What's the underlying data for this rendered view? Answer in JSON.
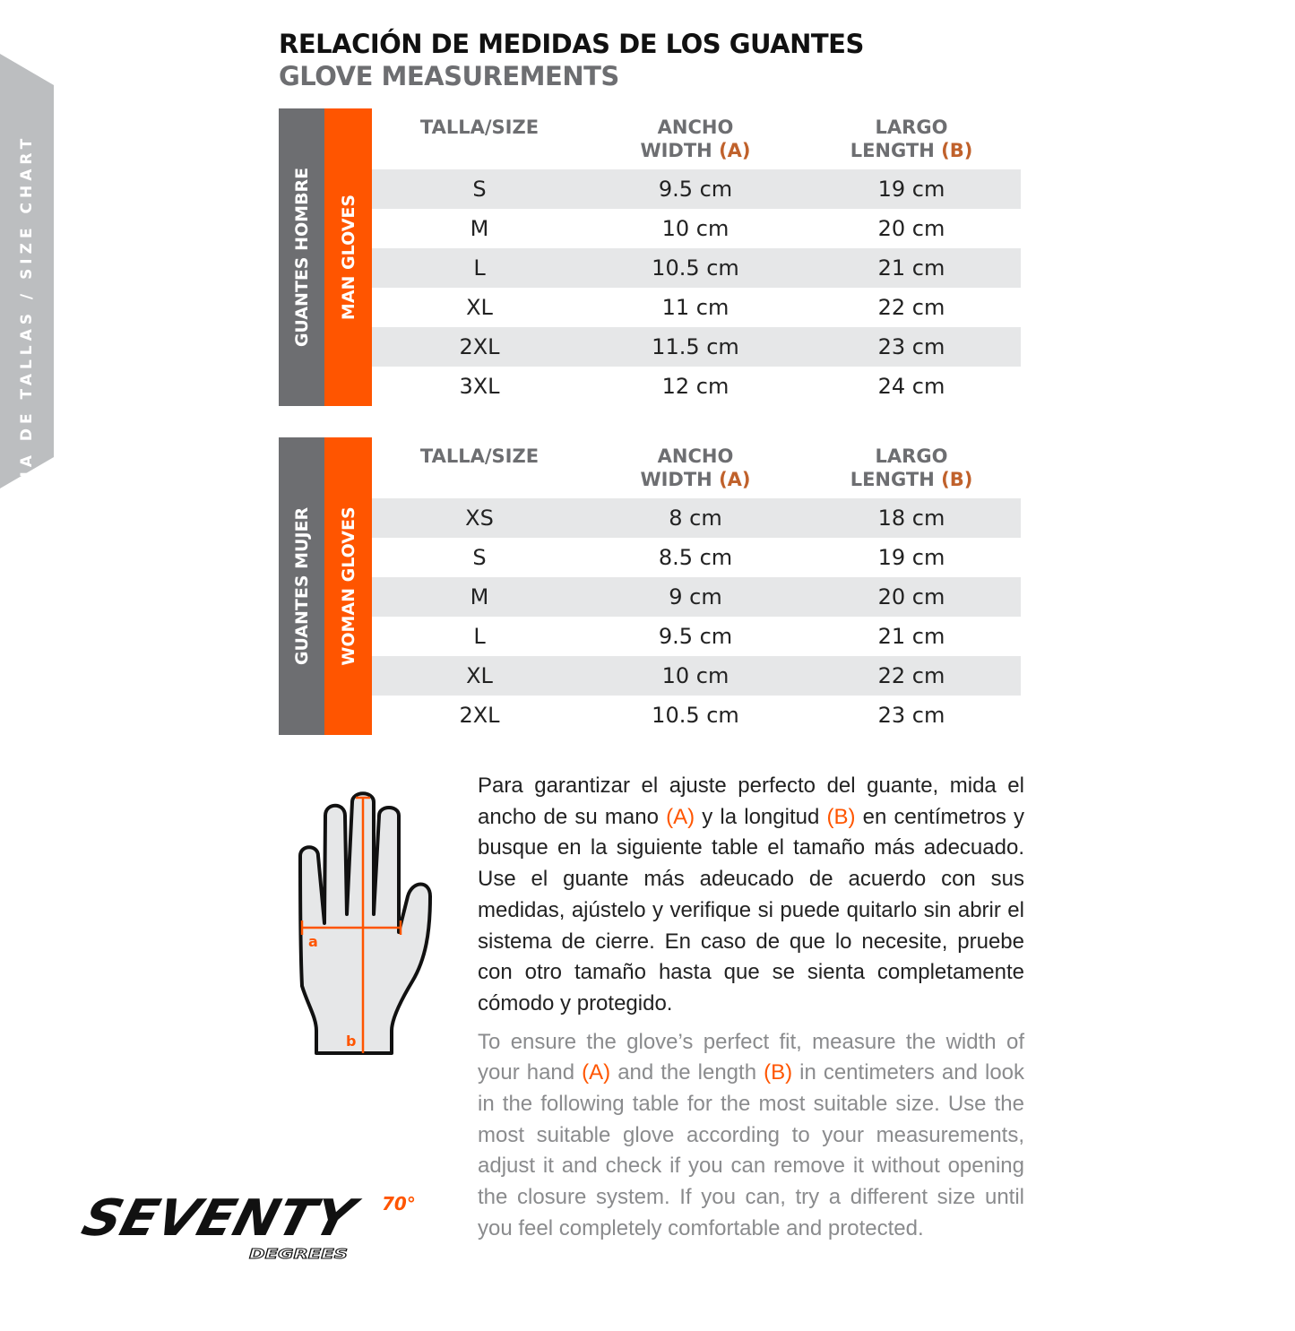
{
  "side_tab": {
    "label": "GUIA DE TALLAS / SIZE CHART",
    "color": "#bcbec0"
  },
  "title": {
    "es": "RELACIÓN DE MEDIDAS DE LOS GUANTES",
    "en": "GLOVE MEASUREMENTS"
  },
  "colors": {
    "accent": "#ff5500",
    "band_gray": "#6d6e71",
    "row_alt": "#e6e7e8"
  },
  "headers": {
    "size": "TALLA/SIZE",
    "width_es": "ANCHO",
    "width_en": "WIDTH",
    "width_mark": "(A)",
    "length_es": "LARGO",
    "length_en": "LENGTH",
    "length_mark": "(B)"
  },
  "men": {
    "label_es": "GUANTES HOMBRE",
    "label_en": "MAN GLOVES",
    "rows": [
      {
        "size": "S",
        "width": "9.5 cm",
        "length": "19 cm"
      },
      {
        "size": "M",
        "width": "10 cm",
        "length": "20 cm"
      },
      {
        "size": "L",
        "width": "10.5 cm",
        "length": "21 cm"
      },
      {
        "size": "XL",
        "width": "11 cm",
        "length": "22 cm"
      },
      {
        "size": "2XL",
        "width": "11.5 cm",
        "length": "23 cm"
      },
      {
        "size": "3XL",
        "width": "12 cm",
        "length": "24 cm"
      }
    ]
  },
  "women": {
    "label_es": "GUANTES MUJER",
    "label_en": "WOMAN GLOVES",
    "rows": [
      {
        "size": "XS",
        "width": "8 cm",
        "length": "18 cm"
      },
      {
        "size": "S",
        "width": "8.5 cm",
        "length": "19 cm"
      },
      {
        "size": "M",
        "width": "9 cm",
        "length": "20 cm"
      },
      {
        "size": "L",
        "width": "9.5 cm",
        "length": "21 cm"
      },
      {
        "size": "XL",
        "width": "10 cm",
        "length": "22 cm"
      },
      {
        "size": "2XL",
        "width": "10.5 cm",
        "length": "23 cm"
      }
    ]
  },
  "hand": {
    "label_a": "a",
    "label_b": "b"
  },
  "text_es": {
    "t1": "Para garantizar el ajuste perfecto del guante, mida el ancho de su mano ",
    "a": "(A)",
    "t2": " y la longitud ",
    "b": "(B)",
    "t3": " en centímetros y busque en la siguiente table el tamaño más adecuado. Use el guante más adeucado de acuerdo con sus medidas, ajústelo y verifique si puede quitarlo sin abrir el sistema de cierre. En caso de que lo necesite, pruebe con otro tamaño hasta que se sienta completamente cómodo y protegido."
  },
  "text_en": {
    "t1": "To ensure the glove’s perfect fit, measure the width of your hand ",
    "a": "(A)",
    "t2": " and the length ",
    "b": "(B)",
    "t3": " in centimeters and look in the following table for the most suitable size. Use the most suitable glove according to your measurements, adjust it and check if you can remove it without opening the closure system. If you can, try a different size until you feel completely comfortable and protected."
  },
  "logo": {
    "text": "SEVENTY",
    "sub": "DEGREES",
    "mark": "70°"
  }
}
